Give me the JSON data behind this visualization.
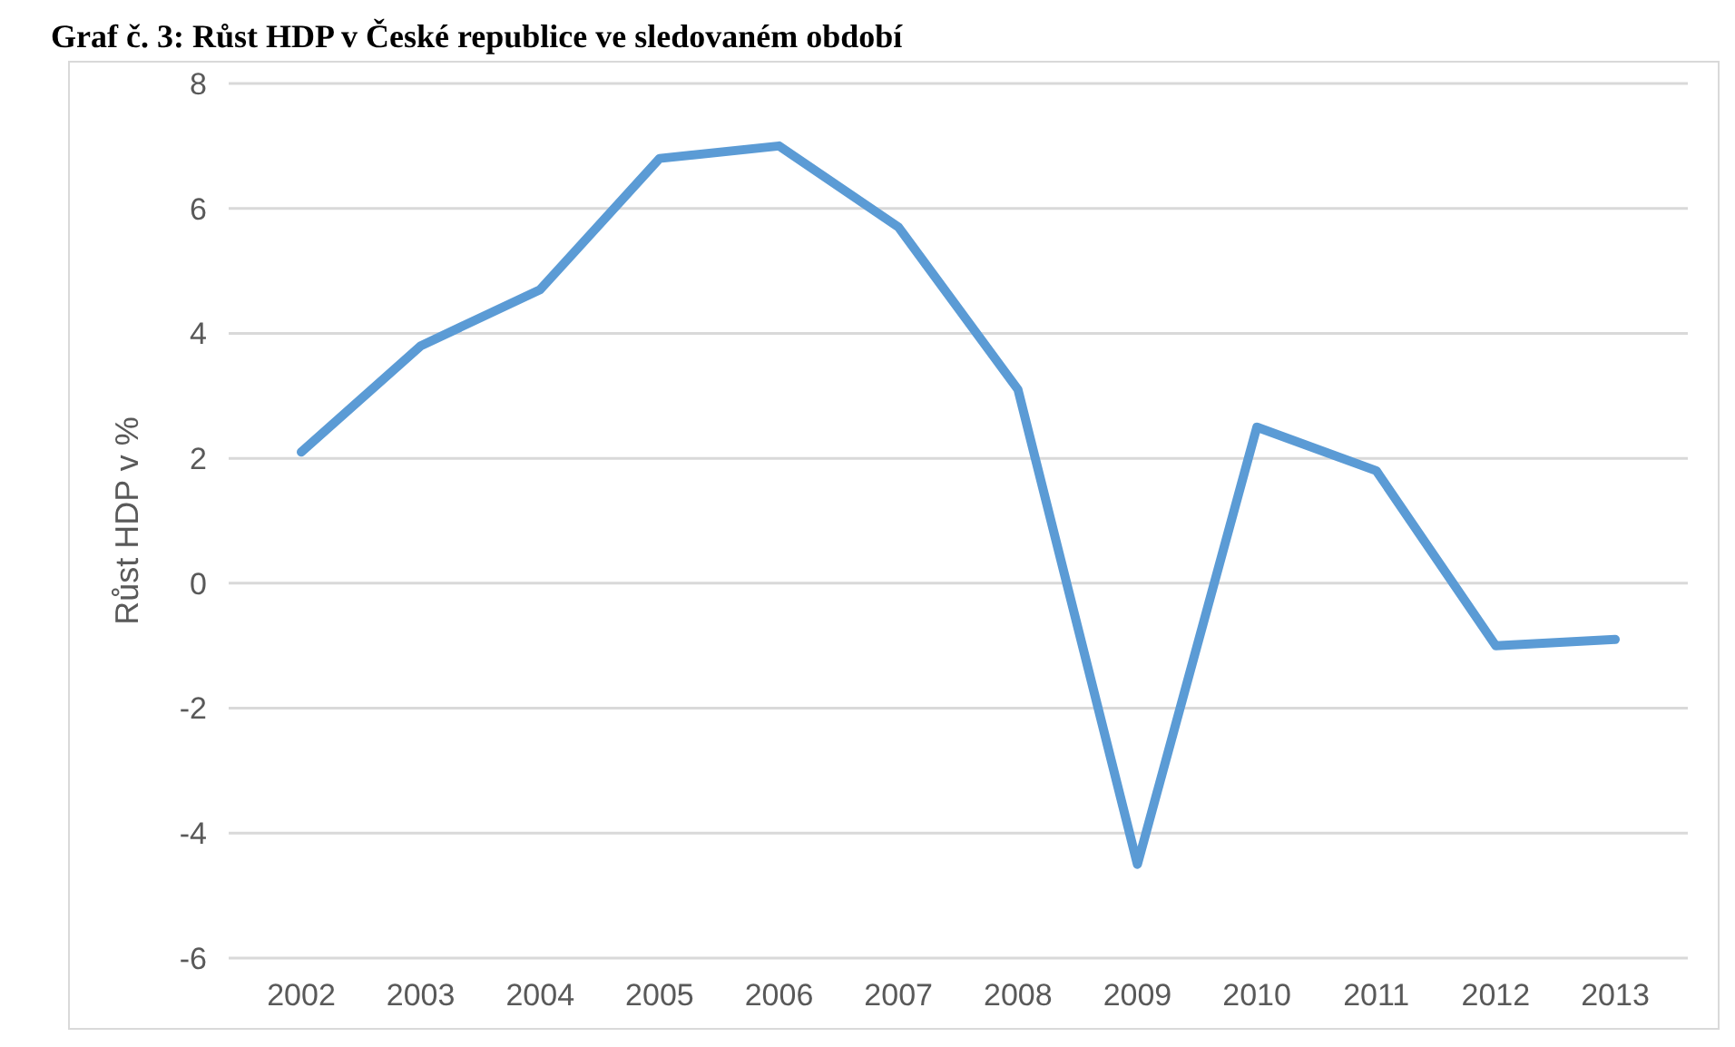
{
  "chart_data": {
    "type": "line",
    "title": "Graf č. 3: Růst HDP v České republice ve sledovaném období",
    "ylabel": "Růst HDP v %",
    "categories": [
      "2002",
      "2003",
      "2004",
      "2005",
      "2006",
      "2007",
      "2008",
      "2009",
      "2010",
      "2011",
      "2012",
      "2013"
    ],
    "series": [
      {
        "color": "#5b9bd5",
        "values": [
          2.1,
          3.8,
          4.7,
          6.8,
          7.0,
          5.7,
          3.1,
          -4.5,
          2.5,
          1.8,
          -1.0,
          -0.9
        ]
      }
    ],
    "ylim": [
      -6,
      8
    ],
    "yticks": [
      -6,
      -4,
      -2,
      0,
      2,
      4,
      6,
      8
    ],
    "grid": "y",
    "marker": "none",
    "line_style": "solid"
  }
}
